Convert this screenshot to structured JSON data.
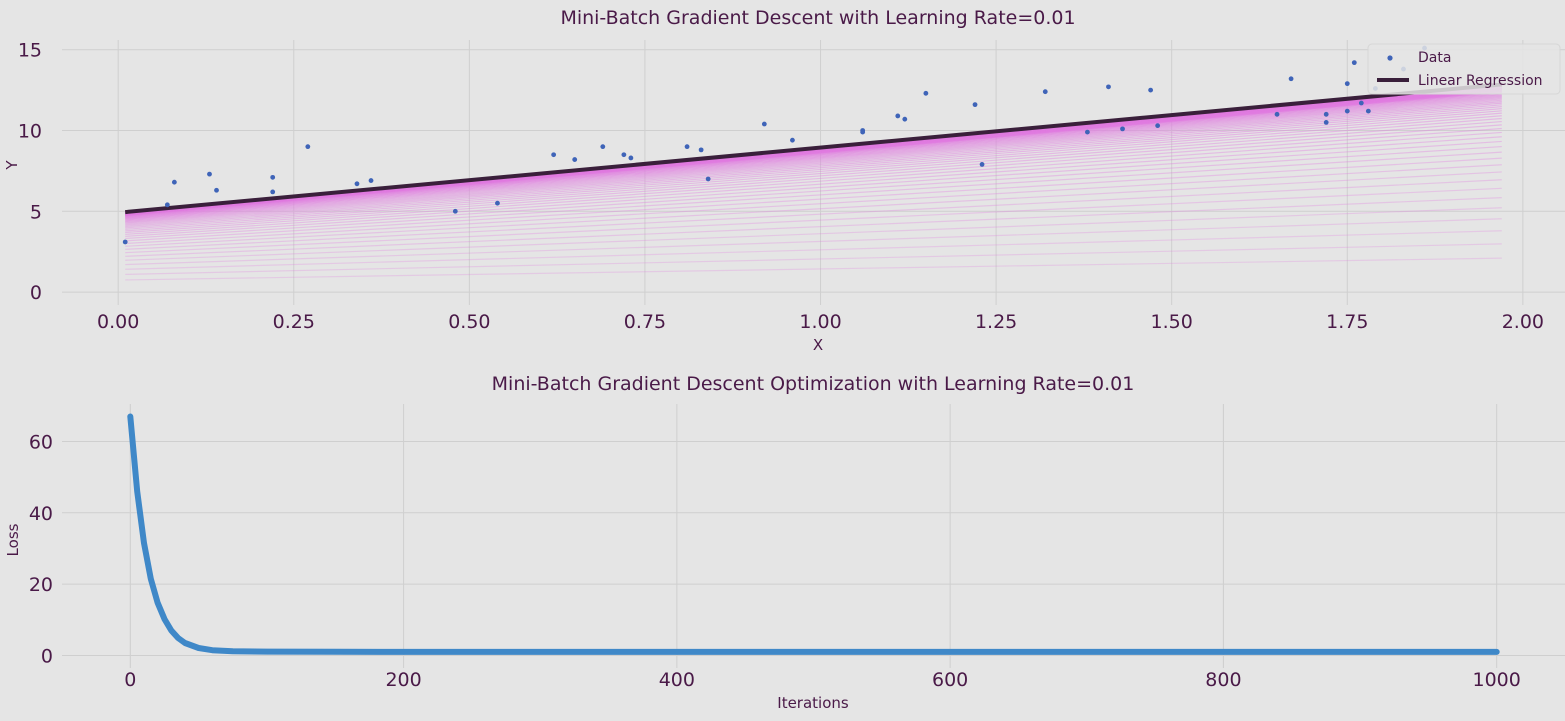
{
  "chart_data": [
    {
      "type": "scatter",
      "title": "Mini-Batch Gradient Descent with Learning Rate=0.01",
      "xlabel": "X",
      "ylabel": "Y",
      "xlim": [
        -0.08,
        2.06
      ],
      "ylim": [
        -0.8,
        15.6
      ],
      "xticks": [
        0.0,
        0.25,
        0.5,
        0.75,
        1.0,
        1.25,
        1.5,
        1.75,
        2.0
      ],
      "xtick_labels": [
        "0.00",
        "0.25",
        "0.50",
        "0.75",
        "1.00",
        "1.25",
        "1.50",
        "1.75",
        "2.00"
      ],
      "yticks": [
        0,
        5,
        10,
        15
      ],
      "ytick_labels": [
        "0",
        "5",
        "10",
        "15"
      ],
      "grid": true,
      "legend": {
        "placement": "top-right",
        "entries": [
          "Data",
          "Linear Regression"
        ]
      },
      "series": [
        {
          "name": "Data",
          "kind": "scatter",
          "color": "#3f64b8",
          "points": [
            [
              0.01,
              3.1
            ],
            [
              0.07,
              5.4
            ],
            [
              0.08,
              6.8
            ],
            [
              0.13,
              7.3
            ],
            [
              0.14,
              6.3
            ],
            [
              0.22,
              7.1
            ],
            [
              0.22,
              6.2
            ],
            [
              0.27,
              9.0
            ],
            [
              0.34,
              6.7
            ],
            [
              0.36,
              6.9
            ],
            [
              0.48,
              5.0
            ],
            [
              0.54,
              5.5
            ],
            [
              0.62,
              8.5
            ],
            [
              0.65,
              8.2
            ],
            [
              0.69,
              9.0
            ],
            [
              0.72,
              8.5
            ],
            [
              0.73,
              8.3
            ],
            [
              0.81,
              9.0
            ],
            [
              0.83,
              8.8
            ],
            [
              0.84,
              7.0
            ],
            [
              0.92,
              10.4
            ],
            [
              0.96,
              9.4
            ],
            [
              1.06,
              10.0
            ],
            [
              1.06,
              9.9
            ],
            [
              1.11,
              10.9
            ],
            [
              1.12,
              10.7
            ],
            [
              1.15,
              12.3
            ],
            [
              1.22,
              11.6
            ],
            [
              1.23,
              7.9
            ],
            [
              1.32,
              12.4
            ],
            [
              1.38,
              9.9
            ],
            [
              1.41,
              12.7
            ],
            [
              1.43,
              10.1
            ],
            [
              1.47,
              12.5
            ],
            [
              1.48,
              10.3
            ],
            [
              1.65,
              11.0
            ],
            [
              1.67,
              13.2
            ],
            [
              1.72,
              11.0
            ],
            [
              1.72,
              10.5
            ],
            [
              1.75,
              11.2
            ],
            [
              1.75,
              12.9
            ],
            [
              1.76,
              14.2
            ],
            [
              1.77,
              11.7
            ],
            [
              1.78,
              11.2
            ],
            [
              1.86,
              15.1
            ],
            [
              1.79,
              12.6
            ],
            [
              1.83,
              13.8
            ]
          ]
        },
        {
          "name": "Linear Regression",
          "kind": "line",
          "color": "#3a1f3b",
          "x": [
            0.01,
            1.97
          ],
          "y": [
            4.95,
            12.85
          ]
        }
      ],
      "iteration_lines": {
        "color": "#e07be0",
        "x": [
          0.01,
          1.97
        ],
        "start": {
          "intercept": 0.75,
          "end": 2.1
        },
        "final": {
          "intercept": 4.95,
          "end": 12.85
        },
        "count": 70
      }
    },
    {
      "type": "line",
      "title": "Mini-Batch Gradient Descent Optimization with Learning Rate=0.01",
      "xlabel": "Iterations",
      "ylabel": "Loss",
      "xlim": [
        -50,
        1050
      ],
      "ylim": [
        -3.5,
        70.5
      ],
      "xticks": [
        0,
        200,
        400,
        600,
        800,
        1000
      ],
      "xtick_labels": [
        "0",
        "200",
        "400",
        "600",
        "800",
        "1000"
      ],
      "yticks": [
        0,
        20,
        40,
        60
      ],
      "ytick_labels": [
        "0",
        "20",
        "40",
        "60"
      ],
      "grid": true,
      "series": [
        {
          "kind": "line",
          "color": "#3f88c8",
          "x": [
            0,
            5,
            10,
            15,
            20,
            25,
            30,
            35,
            40,
            50,
            60,
            75,
            100,
            150,
            200,
            300,
            400,
            500,
            600,
            700,
            800,
            900,
            1000
          ],
          "y": [
            67,
            46,
            31.5,
            21.5,
            14.8,
            10.2,
            7.0,
            4.9,
            3.5,
            2.1,
            1.5,
            1.2,
            1.1,
            1.05,
            1.0,
            1.0,
            1.0,
            1.0,
            1.0,
            1.0,
            1.0,
            1.0,
            1.0
          ]
        }
      ]
    }
  ]
}
